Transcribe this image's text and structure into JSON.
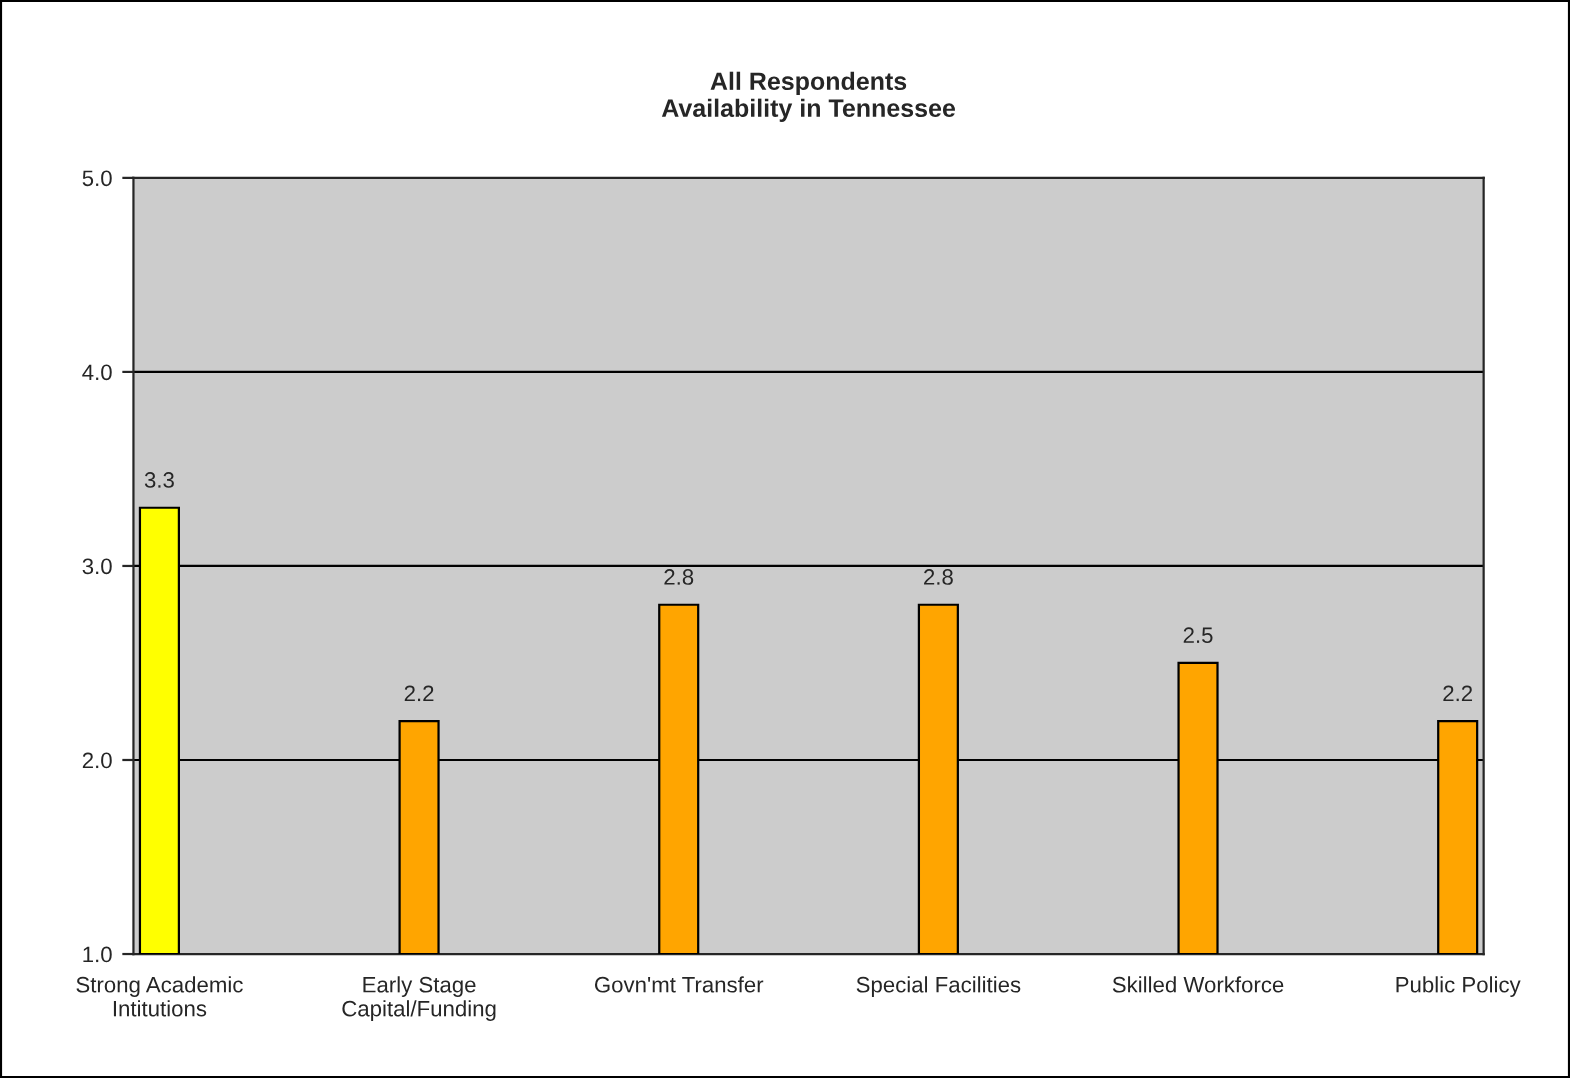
{
  "chart_data": {
    "type": "bar",
    "title": "All Respondents\nAvailability in Tennessee",
    "categories": [
      "Strong Academic\nIntitutions",
      "Early Stage\nCapital/Funding",
      "Govn'mt Transfer",
      "Special Facilities",
      "Skilled Workforce",
      "Public Policy"
    ],
    "values": [
      3.3,
      2.2,
      2.8,
      2.8,
      2.5,
      2.2
    ],
    "colors": [
      "#ffff00",
      "#ffa500",
      "#ffa500",
      "#ffa500",
      "#ffa500",
      "#ffa500"
    ],
    "ylim": [
      1,
      5
    ],
    "yticks": [
      {
        "value": 1,
        "label": "1.0"
      },
      {
        "value": 2,
        "label": "2.0"
      },
      {
        "value": 3,
        "label": "3.0"
      },
      {
        "value": 4,
        "label": "4.0"
      },
      {
        "value": 5,
        "label": "5.0"
      }
    ],
    "grid": "y",
    "data_labels": true
  }
}
